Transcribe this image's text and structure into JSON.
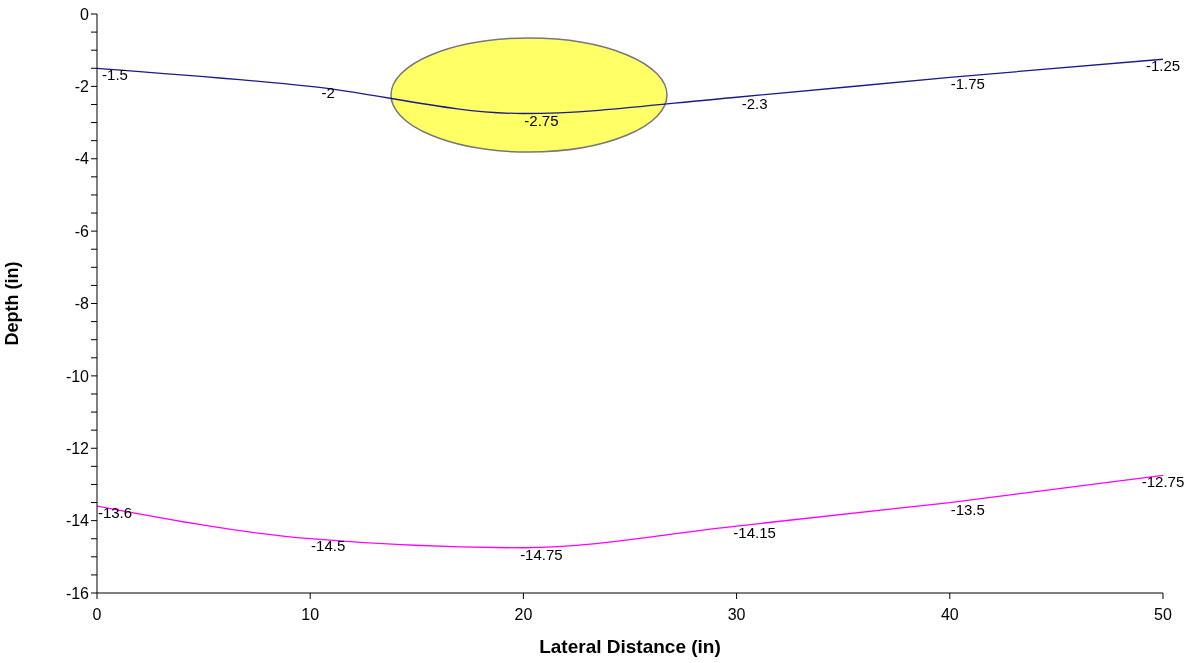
{
  "chart_data": {
    "type": "line",
    "xlabel": "Lateral Distance (in)",
    "ylabel": "Depth (in)",
    "x": [
      0,
      10,
      20,
      30,
      40,
      50
    ],
    "series": [
      {
        "color": "#1a1a8c",
        "values": [
          -1.5,
          -2,
          -2.75,
          -2.3,
          -1.75,
          -1.25
        ]
      },
      {
        "color": "#ff00ff",
        "values": [
          -13.6,
          -14.5,
          -14.75,
          -14.15,
          -13.5,
          -12.75
        ]
      }
    ],
    "xlim": [
      0,
      50
    ],
    "xticks": [
      0,
      10,
      20,
      30,
      40,
      50
    ],
    "ylim": [
      -16,
      0
    ],
    "yticks": [
      -16,
      {
        "value": -15.5,
        "label": null
      },
      {
        "value": -15,
        "label": null
      },
      {
        "value": -14.5,
        "label": null
      },
      -14,
      {
        "value": -13.5,
        "label": null
      },
      {
        "value": -13,
        "label": null
      },
      {
        "value": -12.5,
        "label": null
      },
      -12,
      {
        "value": -11.5,
        "label": null
      },
      {
        "value": -11,
        "label": null
      },
      {
        "value": -10.5,
        "label": null
      },
      -10,
      {
        "value": -9.5,
        "label": null
      },
      {
        "value": -9,
        "label": null
      },
      {
        "value": -8.5,
        "label": null
      },
      -8,
      {
        "value": -7.5,
        "label": null
      },
      {
        "value": -7,
        "label": null
      },
      {
        "value": -6.5,
        "label": null
      },
      -6,
      {
        "value": -5.5,
        "label": null
      },
      {
        "value": -5,
        "label": null
      },
      {
        "value": -4.5,
        "label": null
      },
      -4,
      {
        "value": -3.5,
        "label": null
      },
      {
        "value": -3,
        "label": null
      },
      {
        "value": -2.5,
        "label": null
      },
      -2,
      {
        "value": -1.5,
        "label": null
      },
      {
        "value": -1,
        "label": null
      },
      {
        "value": -0.5,
        "label": null
      },
      0
    ],
    "marker": "none",
    "line_style": "solid",
    "data_labels": true
  }
}
